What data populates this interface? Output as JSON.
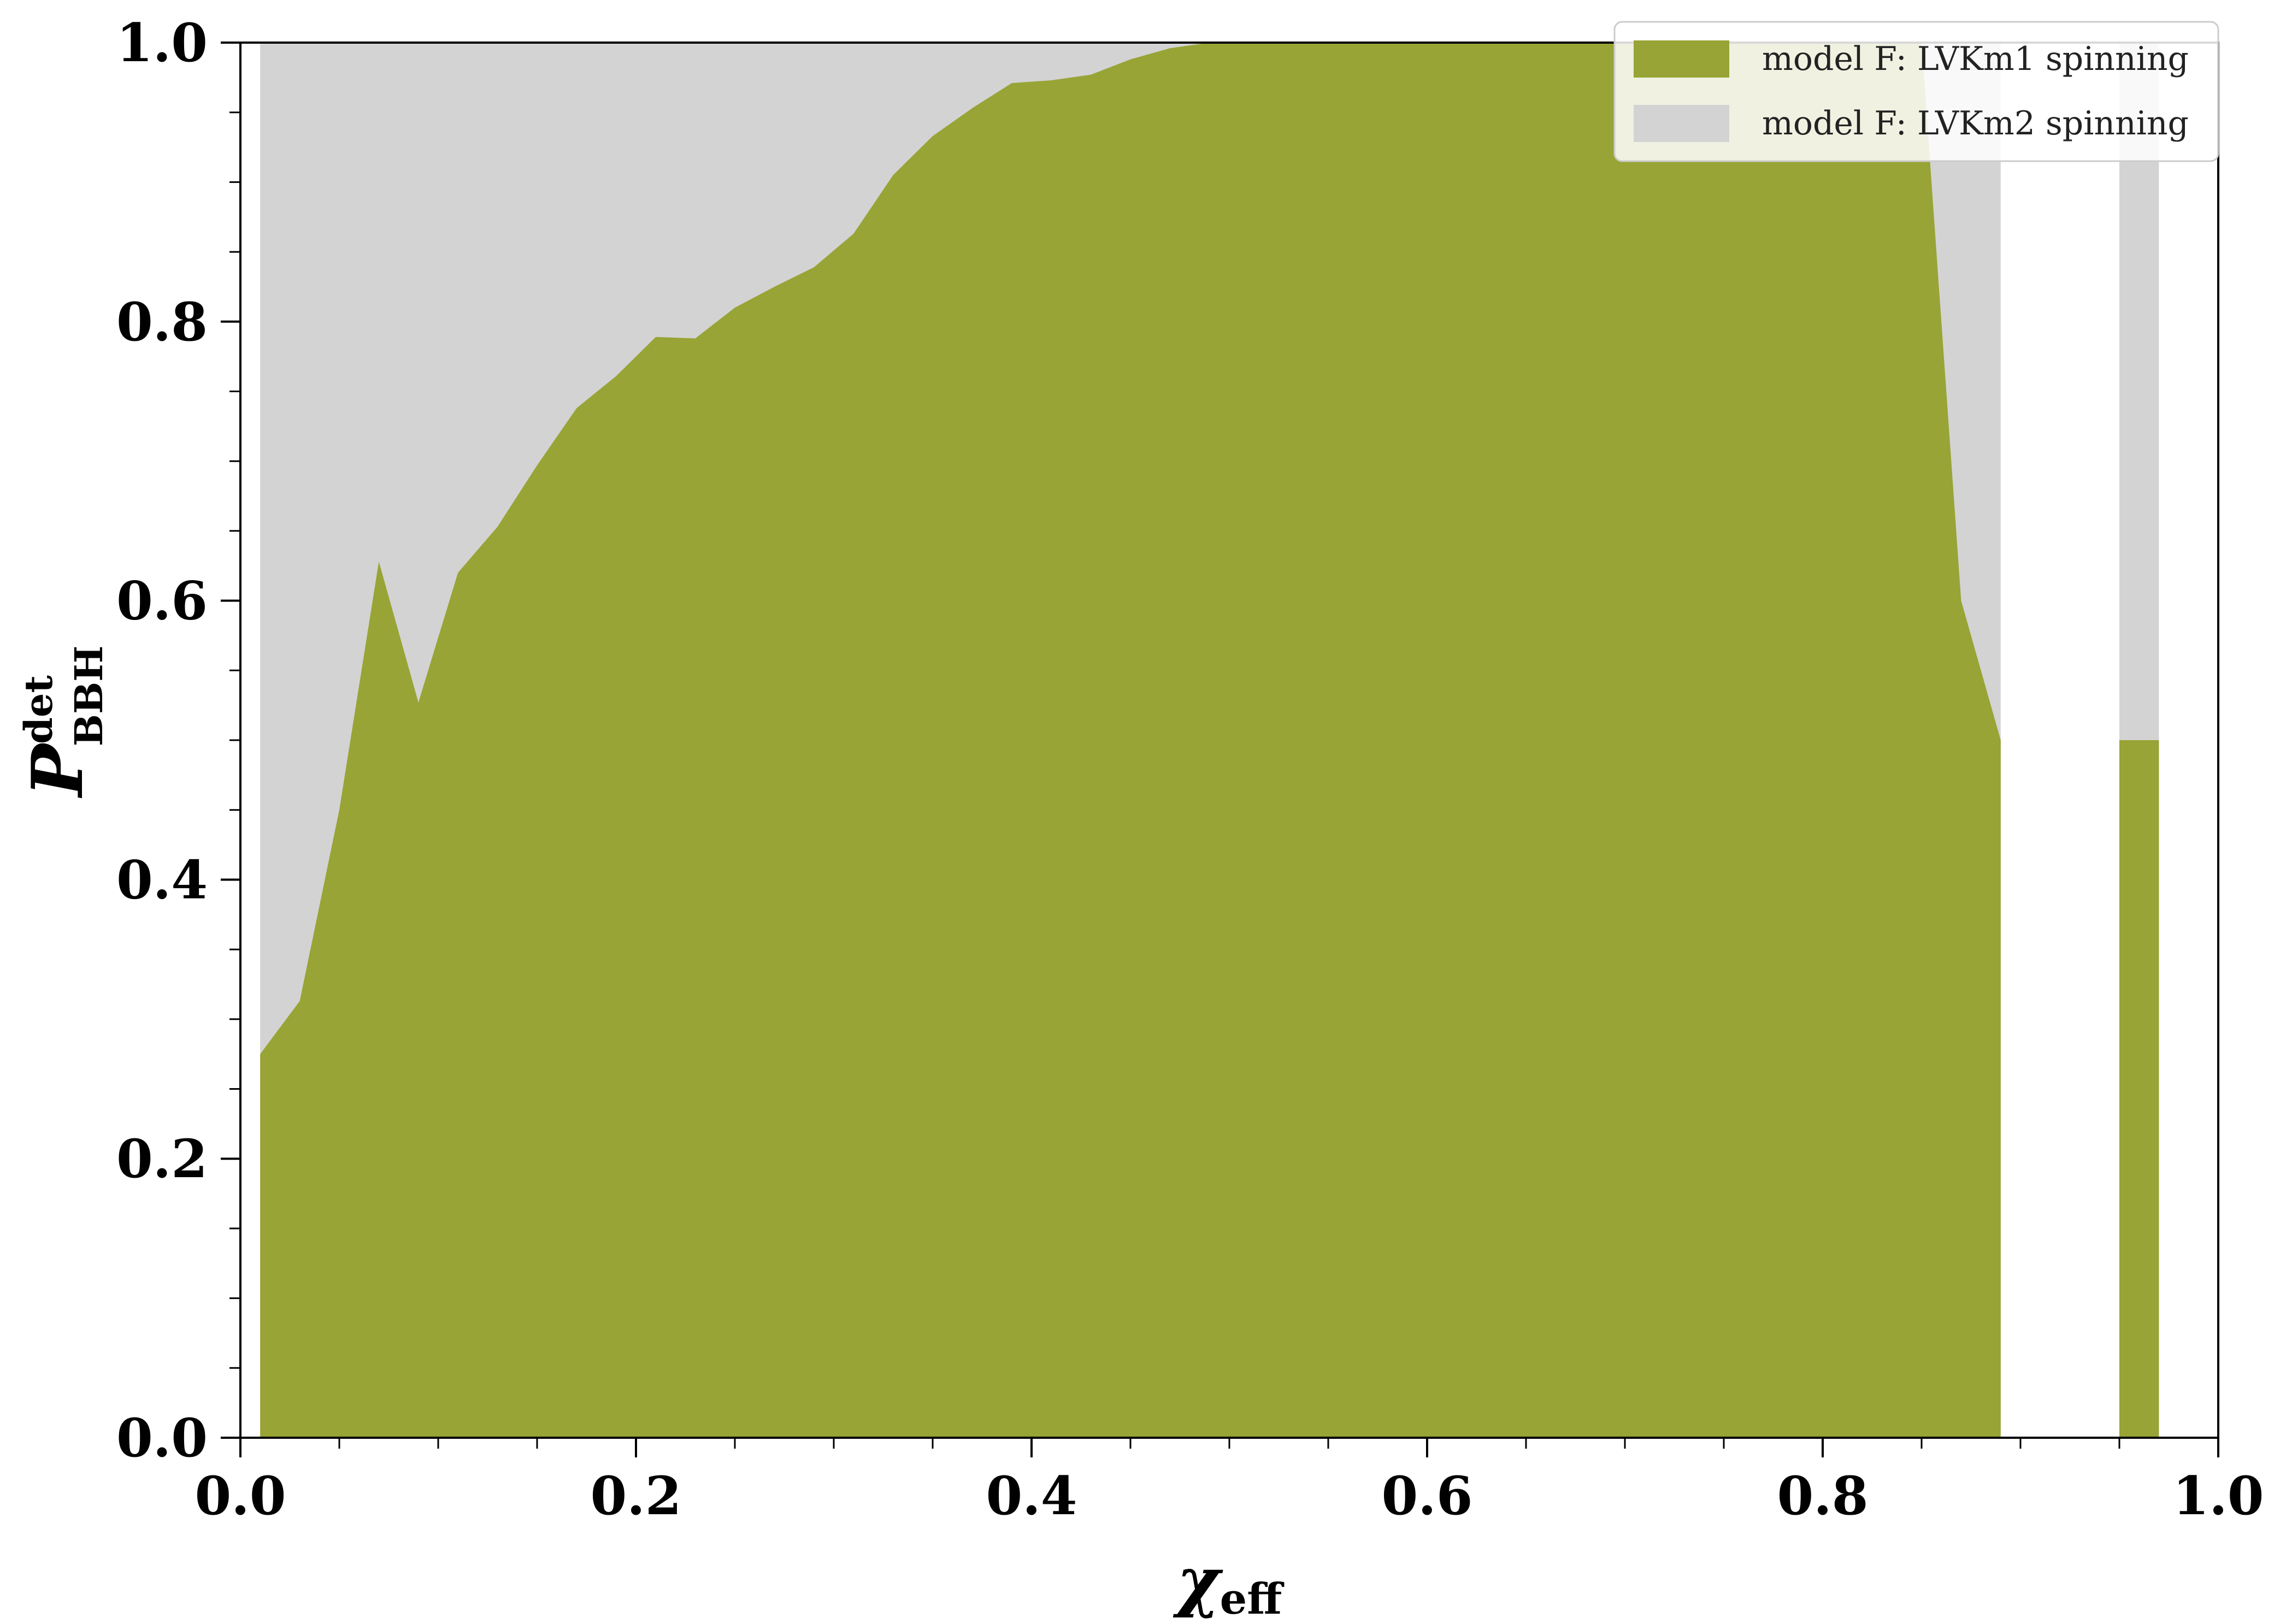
{
  "chart_data": {
    "type": "area",
    "xlabel_symbol": "χ",
    "xlabel_subscript": "eff",
    "ylabel_symbol": "P",
    "ylabel_superscript": "det",
    "ylabel_subscript": "BBH",
    "xlim": [
      0.0,
      1.0
    ],
    "ylim": [
      0.0,
      1.0
    ],
    "xticks": [
      "0.0",
      "0.2",
      "0.4",
      "0.6",
      "0.8",
      "1.0"
    ],
    "yticks": [
      "0.0",
      "0.2",
      "0.4",
      "0.6",
      "0.8",
      "1.0"
    ],
    "grid": false,
    "legend_position": "top-right",
    "series": [
      {
        "name": "model F: LVKm2 spinning",
        "color": "#d3d3d3",
        "segments": [
          {
            "x": [
              0.01,
              0.89
            ],
            "y": [
              1.0,
              1.0
            ]
          },
          {
            "x": [
              0.95,
              0.97
            ],
            "y": [
              1.0,
              1.0
            ]
          }
        ]
      },
      {
        "name": "model F: LVKm1 spinning",
        "color": "#98a435",
        "segments": [
          {
            "x": [
              0.01,
              0.03,
              0.05,
              0.07,
              0.09,
              0.11,
              0.13,
              0.15,
              0.17,
              0.19,
              0.21,
              0.23,
              0.25,
              0.27,
              0.29,
              0.31,
              0.33,
              0.35,
              0.37,
              0.39,
              0.41,
              0.43,
              0.45,
              0.47,
              0.49,
              0.51,
              0.53,
              0.55,
              0.57,
              0.59,
              0.61,
              0.63,
              0.65,
              0.67,
              0.69,
              0.71,
              0.73,
              0.75,
              0.77,
              0.79,
              0.81,
              0.83,
              0.85,
              0.87,
              0.89
            ],
            "y": [
              0.275,
              0.313,
              0.45,
              0.628,
              0.527,
              0.62,
              0.653,
              0.697,
              0.738,
              0.761,
              0.789,
              0.788,
              0.81,
              0.825,
              0.839,
              0.863,
              0.905,
              0.933,
              0.953,
              0.971,
              0.973,
              0.977,
              0.988,
              0.996,
              1.0,
              1.0,
              1.0,
              1.0,
              1.0,
              1.0,
              1.0,
              1.0,
              1.0,
              1.0,
              1.0,
              1.0,
              1.0,
              1.0,
              1.0,
              1.0,
              1.0,
              1.0,
              1.0,
              0.6,
              0.5
            ]
          },
          {
            "x": [
              0.95,
              0.97
            ],
            "y": [
              0.5,
              0.5
            ]
          }
        ]
      }
    ],
    "legend_order": [
      1,
      0
    ]
  }
}
